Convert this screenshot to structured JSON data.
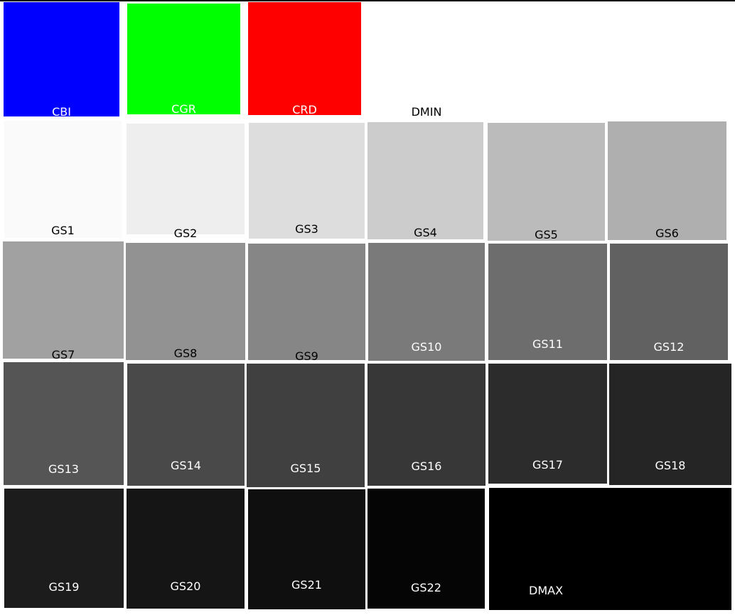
{
  "patches": [
    {
      "id": "cbi",
      "label": "CBI",
      "color": "#0000ff",
      "text_color": "#ffffff"
    },
    {
      "id": "cgr",
      "label": "CGR",
      "color": "#00ff00",
      "text_color": "#ffffff"
    },
    {
      "id": "crd",
      "label": "CRD",
      "color": "#ff0000",
      "text_color": "#ffffff"
    },
    {
      "id": "dmin",
      "label": "DMIN",
      "color": "#ffffff",
      "text_color": "#000000"
    },
    {
      "id": "gs1",
      "label": "GS1",
      "color": "#fafafa",
      "text_color": "#000000"
    },
    {
      "id": "gs2",
      "label": "GS2",
      "color": "#eeeeee",
      "text_color": "#000000"
    },
    {
      "id": "gs3",
      "label": "GS3",
      "color": "#dddddd",
      "text_color": "#000000"
    },
    {
      "id": "gs4",
      "label": "GS4",
      "color": "#cccccc",
      "text_color": "#000000"
    },
    {
      "id": "gs5",
      "label": "GS5",
      "color": "#bbbbbb",
      "text_color": "#000000"
    },
    {
      "id": "gs6",
      "label": "GS6",
      "color": "#afafaf",
      "text_color": "#000000"
    },
    {
      "id": "gs7",
      "label": "GS7",
      "color": "#a1a1a1",
      "text_color": "#000000"
    },
    {
      "id": "gs8",
      "label": "GS8",
      "color": "#929292",
      "text_color": "#000000"
    },
    {
      "id": "gs9",
      "label": "GS9",
      "color": "#868686",
      "text_color": "#000000"
    },
    {
      "id": "gs10",
      "label": "GS10",
      "color": "#7a7a7a",
      "text_color": "#ffffff"
    },
    {
      "id": "gs11",
      "label": "GS11",
      "color": "#6d6d6d",
      "text_color": "#ffffff"
    },
    {
      "id": "gs12",
      "label": "GS12",
      "color": "#616161",
      "text_color": "#ffffff"
    },
    {
      "id": "gs13",
      "label": "GS13",
      "color": "#555555",
      "text_color": "#ffffff"
    },
    {
      "id": "gs14",
      "label": "GS14",
      "color": "#494949",
      "text_color": "#ffffff"
    },
    {
      "id": "gs15",
      "label": "GS15",
      "color": "#404040",
      "text_color": "#ffffff"
    },
    {
      "id": "gs16",
      "label": "GS16",
      "color": "#373737",
      "text_color": "#ffffff"
    },
    {
      "id": "gs17",
      "label": "GS17",
      "color": "#2c2c2c",
      "text_color": "#ffffff"
    },
    {
      "id": "gs18",
      "label": "GS18",
      "color": "#252525",
      "text_color": "#ffffff"
    },
    {
      "id": "gs19",
      "label": "GS19",
      "color": "#1c1c1c",
      "text_color": "#ffffff"
    },
    {
      "id": "gs20",
      "label": "GS20",
      "color": "#151515",
      "text_color": "#ffffff"
    },
    {
      "id": "gs21",
      "label": "GS21",
      "color": "#0f0f0f",
      "text_color": "#ffffff"
    },
    {
      "id": "gs22",
      "label": "GS22",
      "color": "#050505",
      "text_color": "#ffffff"
    },
    {
      "id": "dmax",
      "label": "DMAX",
      "color": "#000000",
      "text_color": "#ffffff"
    }
  ]
}
